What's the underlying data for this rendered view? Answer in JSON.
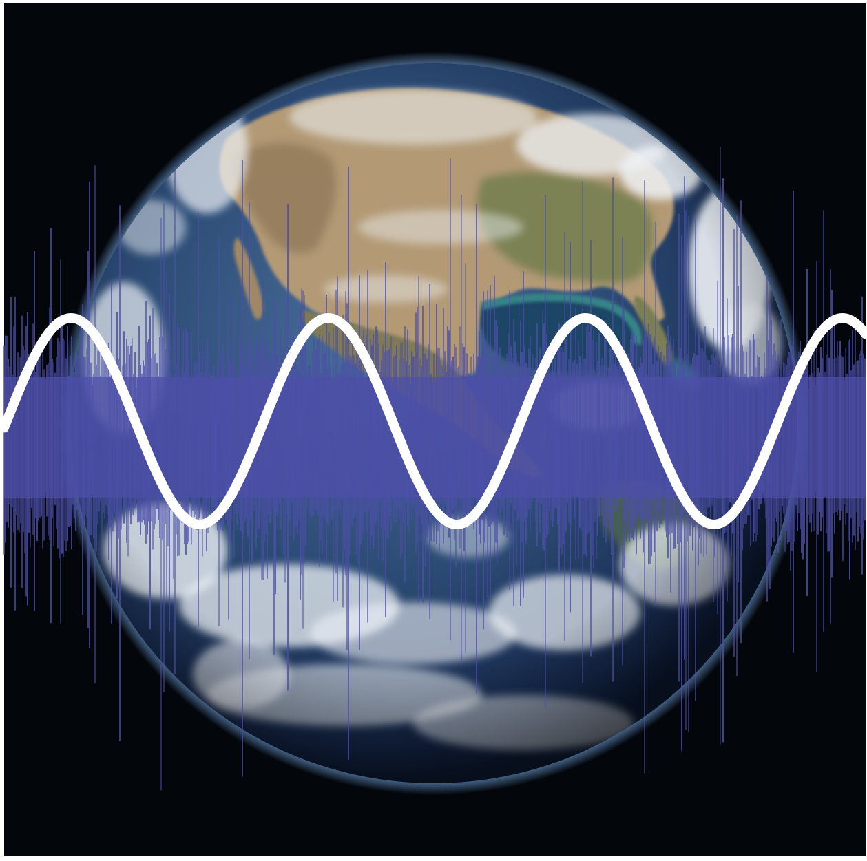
{
  "colors": {
    "space": "#03060b",
    "frame": "#ffffff",
    "ocean_deep": "#12203f",
    "ocean": "#2b4a73",
    "ocean_light": "#4a6f9c",
    "land_tan": "#b39a74",
    "land_brown": "#8d7556",
    "land_green": "#6b7a4a",
    "gulf_teal": "#3a8f8c",
    "cloud": "#eef2f6",
    "atmosphere": "#6fa0d8",
    "noise_wave": "#4d4fa8",
    "sine_wave": "#ffffff"
  },
  "waves": {
    "sine_cycles_visible": 3.35,
    "noise_opacity": 0.85
  }
}
